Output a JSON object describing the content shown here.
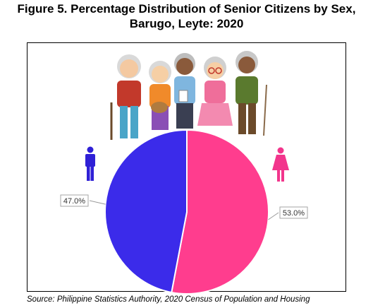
{
  "title_line1": "Figure 5. Percentage Distribution of Senior Citizens by Sex,",
  "title_line2": "Barugo, Leyte: 2020",
  "source": "Source: Philippine Statistics Authority, 2020 Census of Population and Housing",
  "icons": {
    "male": "male-person-icon",
    "female": "female-person-icon",
    "illustration": "senior-citizens-group-illustration"
  },
  "colors": {
    "male": "#3b2bea",
    "female": "#ff3d8e",
    "male_icon": "#2f20d6",
    "female_icon": "#f2358c"
  },
  "chart_data": {
    "type": "pie",
    "title": "Figure 5. Percentage Distribution of Senior Citizens by Sex, Barugo, Leyte: 2020",
    "slices": [
      {
        "label": "Female",
        "value": 53.0,
        "display": "53.0%",
        "color": "#ff3d8e"
      },
      {
        "label": "Male",
        "value": 47.0,
        "display": "47.0%",
        "color": "#3b2bea"
      }
    ],
    "start_angle": "top",
    "direction": "clockwise"
  }
}
